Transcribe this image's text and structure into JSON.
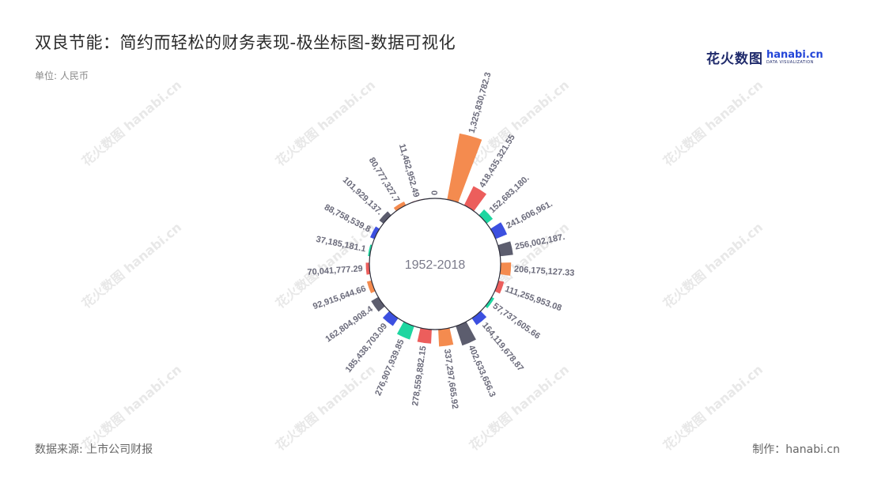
{
  "title": "双良节能：简约而轻松的财务表现-极坐标图-数据可视化",
  "unit": "单位: 人民币",
  "source": "数据来源: 上市公司财报",
  "credit": "制作：hanabi.cn",
  "logo": {
    "cn": "花火数图",
    "en": "hanabi.cn",
    "sub": "DATA VISUALIZATION"
  },
  "watermark": "花火数图 hanabi.cn",
  "colors": [
    "#5c5d6e",
    "#f48b4f",
    "#ec5e5c",
    "#1ed6a0",
    "#3c50e0"
  ],
  "chart_data": {
    "type": "bar",
    "polar": true,
    "center_label": "1952-2018",
    "values": [
      0,
      1325830782.3,
      418435321.55,
      152683180.0,
      241606961.0,
      256002187.0,
      206175127.33,
      111255953.08,
      57737605.66,
      164119678.87,
      402633656.3,
      337297665.92,
      278559882.15,
      276907939.85,
      185438703.09,
      162804908.4,
      92915644.66,
      70041777.29,
      37185181.1,
      88758539.8,
      101929137.0,
      80777327.7,
      11462952.49
    ],
    "labels": [
      "0",
      "1,325,830,782.3",
      "418,435,321.55",
      "152,683,180.",
      "241,606,961.",
      "256,002,187.",
      "206,175,127.33",
      "111,255,953.08",
      "57,737,605.66",
      "164,119,678.87",
      "402,633,656.3",
      "337,297,665.92",
      "278,559,882.15",
      "276,907,939.85",
      "185,438,703.09",
      "162,804,908.4",
      "92,915,644.66",
      "70,041,777.29",
      "37,185,181.1",
      "88,758,539.8",
      "101,929,137.",
      "80,777,327.7",
      "11,462,952.49"
    ],
    "max_value": 1325830782.3
  }
}
